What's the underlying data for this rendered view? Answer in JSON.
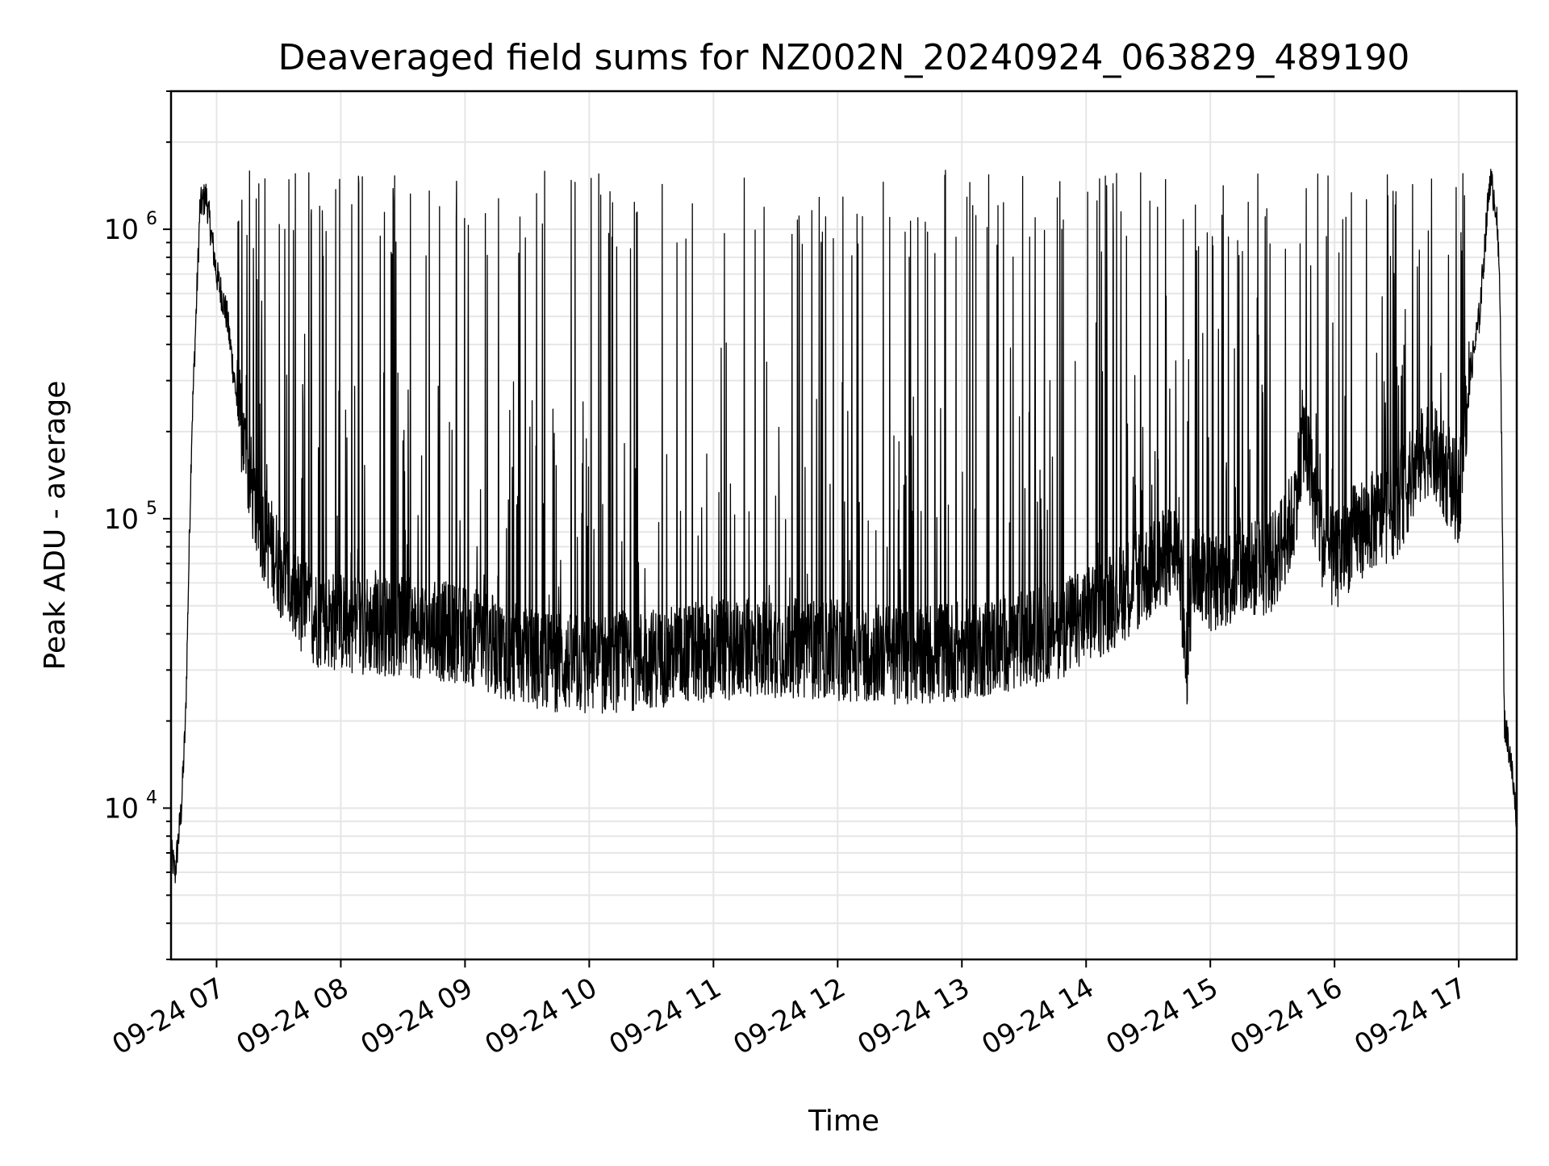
{
  "chart_data": {
    "type": "line",
    "title": "Deaveraged field sums for NZ002N_20240924_063829_489190",
    "xlabel": "Time",
    "ylabel": "Peak ADU - average",
    "y_scale": "log",
    "grid": true,
    "legend": "none",
    "line_color": "#000000",
    "grid_color": "#e6e6e6",
    "xlim": [
      "2024-09-24 06:38",
      "2024-09-24 17:28"
    ],
    "ylim": [
      3000,
      3000000
    ],
    "x_ticks": [
      {
        "label": "09-24 07",
        "value": "2024-09-24 07:00"
      },
      {
        "label": "09-24 08",
        "value": "2024-09-24 08:00"
      },
      {
        "label": "09-24 09",
        "value": "2024-09-24 09:00"
      },
      {
        "label": "09-24 10",
        "value": "2024-09-24 10:00"
      },
      {
        "label": "09-24 11",
        "value": "2024-09-24 11:00"
      },
      {
        "label": "09-24 12",
        "value": "2024-09-24 12:00"
      },
      {
        "label": "09-24 13",
        "value": "2024-09-24 13:00"
      },
      {
        "label": "09-24 14",
        "value": "2024-09-24 14:00"
      },
      {
        "label": "09-24 15",
        "value": "2024-09-24 15:00"
      },
      {
        "label": "09-24 16",
        "value": "2024-09-24 16:00"
      },
      {
        "label": "09-24 17",
        "value": "2024-09-24 17:00"
      }
    ],
    "y_ticks": [
      {
        "base": "10",
        "exp": "4",
        "value": 10000
      },
      {
        "base": "10",
        "exp": "5",
        "value": 100000
      },
      {
        "base": "10",
        "exp": "6",
        "value": 1000000
      }
    ],
    "series": [
      {
        "baseline": {
          "x": [
            "2024-09-24 06:38",
            "2024-09-24 06:40",
            "2024-09-24 06:43",
            "2024-09-24 06:45",
            "2024-09-24 06:48",
            "2024-09-24 06:52",
            "2024-09-24 06:55",
            "2024-09-24 07:00",
            "2024-09-24 07:05",
            "2024-09-24 07:10",
            "2024-09-24 07:15",
            "2024-09-24 07:20",
            "2024-09-24 07:30",
            "2024-09-24 07:40",
            "2024-09-24 07:50",
            "2024-09-24 08:00",
            "2024-09-24 08:30",
            "2024-09-24 09:00",
            "2024-09-24 09:30",
            "2024-09-24 10:00",
            "2024-09-24 10:30",
            "2024-09-24 11:00",
            "2024-09-24 11:30",
            "2024-09-24 12:00",
            "2024-09-24 12:30",
            "2024-09-24 13:00",
            "2024-09-24 13:30",
            "2024-09-24 14:00",
            "2024-09-24 14:30",
            "2024-09-24 14:45",
            "2024-09-24 14:48",
            "2024-09-24 14:52",
            "2024-09-24 15:00",
            "2024-09-24 15:30",
            "2024-09-24 15:40",
            "2024-09-24 15:45",
            "2024-09-24 15:50",
            "2024-09-24 15:55",
            "2024-09-24 16:00",
            "2024-09-24 16:10",
            "2024-09-24 16:30",
            "2024-09-24 16:45",
            "2024-09-24 17:00",
            "2024-09-24 17:05",
            "2024-09-24 17:10",
            "2024-09-24 17:15",
            "2024-09-24 17:18",
            "2024-09-24 17:20",
            "2024-09-24 17:22",
            "2024-09-24 17:25",
            "2024-09-24 17:28"
          ],
          "y": [
            7000,
            6000,
            10000,
            20000,
            200000,
            1200000,
            1300000,
            700000,
            500000,
            250000,
            150000,
            100000,
            70000,
            50000,
            45000,
            44000,
            42000,
            40000,
            33000,
            31000,
            33000,
            35000,
            36000,
            35000,
            34000,
            35000,
            38000,
            45000,
            65000,
            80000,
            28000,
            70000,
            60000,
            70000,
            100000,
            200000,
            120000,
            80000,
            70000,
            90000,
            110000,
            180000,
            120000,
            300000,
            500000,
            1500000,
            1200000,
            600000,
            20000,
            15000,
            9000
          ]
        },
        "spike_peak_range": [
          800000,
          1600000
        ],
        "noise_min_range": [
          20000,
          30000
        ]
      }
    ]
  }
}
